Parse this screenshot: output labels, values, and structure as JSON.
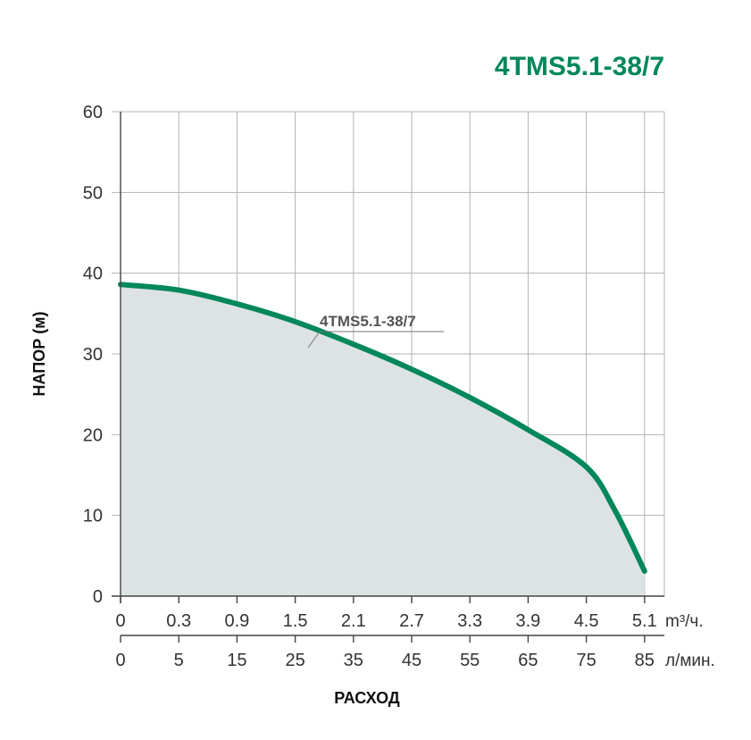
{
  "chart_data": {
    "type": "area",
    "title": "4TMS5.1-38/7",
    "ylabel": "НАПОР (м)",
    "xlabel": "РАСХОД",
    "ylim": [
      0,
      60
    ],
    "y_ticks": [
      "0",
      "10",
      "20",
      "30",
      "40",
      "50",
      "60"
    ],
    "x_ticks_m3h": [
      "0",
      "0.3",
      "0.9",
      "1.5",
      "2.1",
      "2.7",
      "3.3",
      "3.9",
      "4.5",
      "5.1"
    ],
    "x_unit_m3h": "m³/ч.",
    "x_ticks_lmin": [
      "0",
      "5",
      "15",
      "25",
      "35",
      "45",
      "55",
      "65",
      "75",
      "85"
    ],
    "x_unit_lmin": "л/мин.",
    "grid": true,
    "series": [
      {
        "name": "4TMS5.1-38/7",
        "color": "#00875a",
        "x_lmin": [
          0,
          5,
          15,
          25,
          35,
          45,
          55,
          65,
          75,
          80,
          85
        ],
        "y": [
          38.6,
          37.9,
          36.2,
          34.0,
          31.2,
          28.1,
          24.6,
          20.6,
          16.0,
          10.5,
          3.1
        ]
      }
    ],
    "fill_color": "#dde3e5",
    "annotation": "4TMS5.1-38/7"
  }
}
